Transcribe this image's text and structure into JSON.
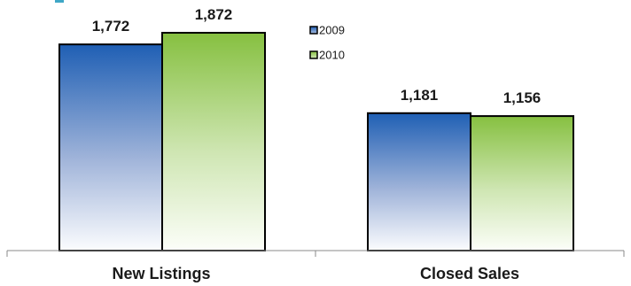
{
  "chart_data": {
    "type": "bar",
    "categories": [
      "New Listings",
      "Closed Sales"
    ],
    "series": [
      {
        "name": "2009",
        "values": [
          1772,
          1181
        ],
        "color": "#2a64b4"
      },
      {
        "name": "2010",
        "values": [
          1872,
          1156
        ],
        "color": "#8cc34a"
      }
    ],
    "data_labels": [
      [
        "1,772",
        "1,181"
      ],
      [
        "1,872",
        "1,156"
      ]
    ],
    "ylim": [
      0,
      2000
    ],
    "grid": false,
    "legend_position": "top-center",
    "title": "",
    "xlabel": "",
    "ylabel": ""
  }
}
